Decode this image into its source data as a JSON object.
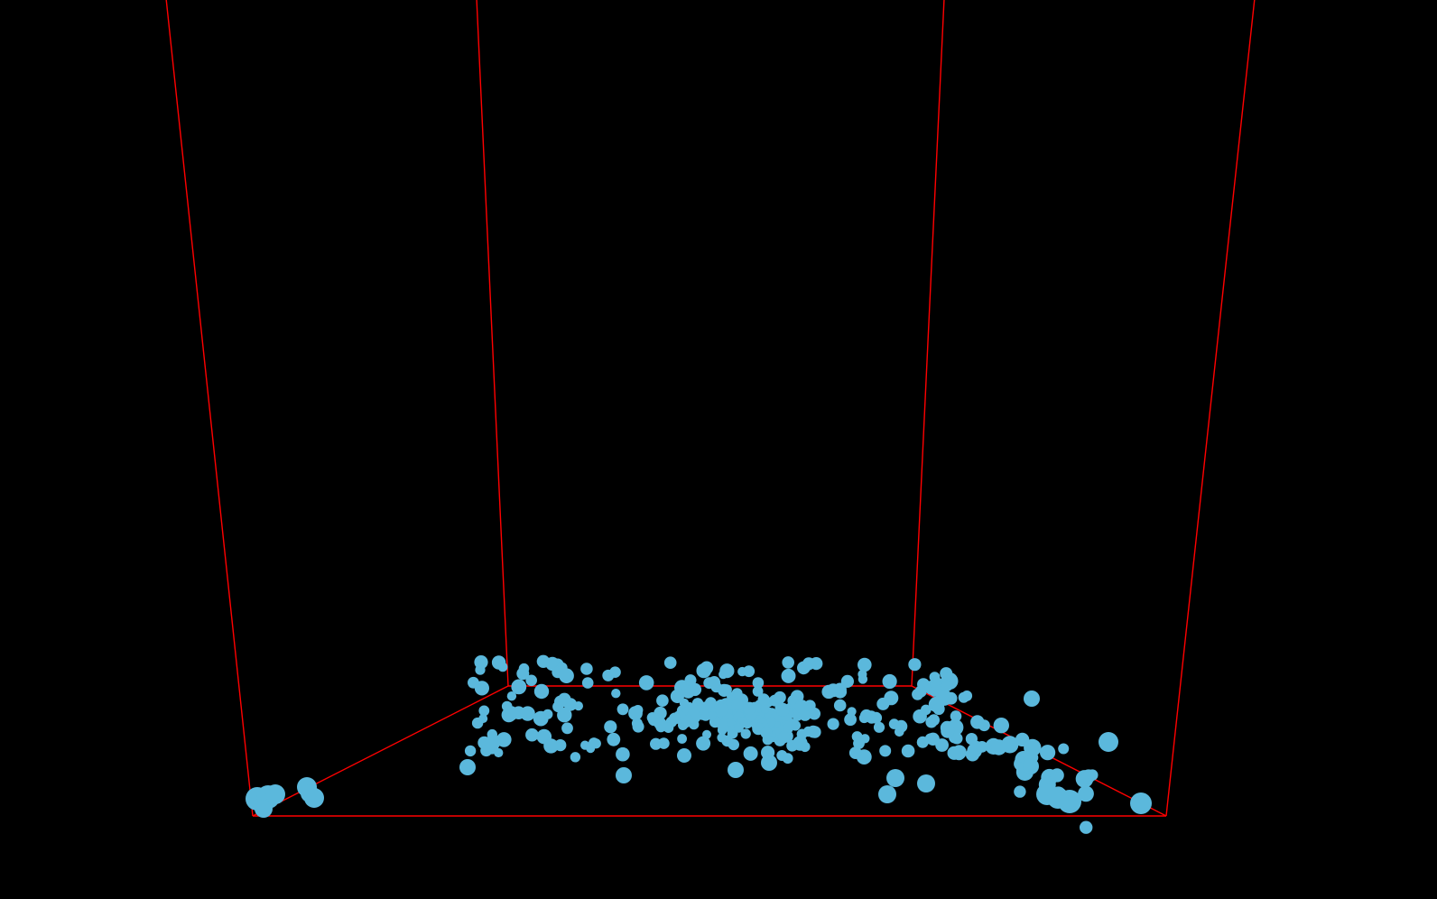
{
  "viewer": {
    "background_color": "#000000",
    "box_color": "#ff0000",
    "point_color": "#5bb8dc"
  },
  "point_count": 400
}
